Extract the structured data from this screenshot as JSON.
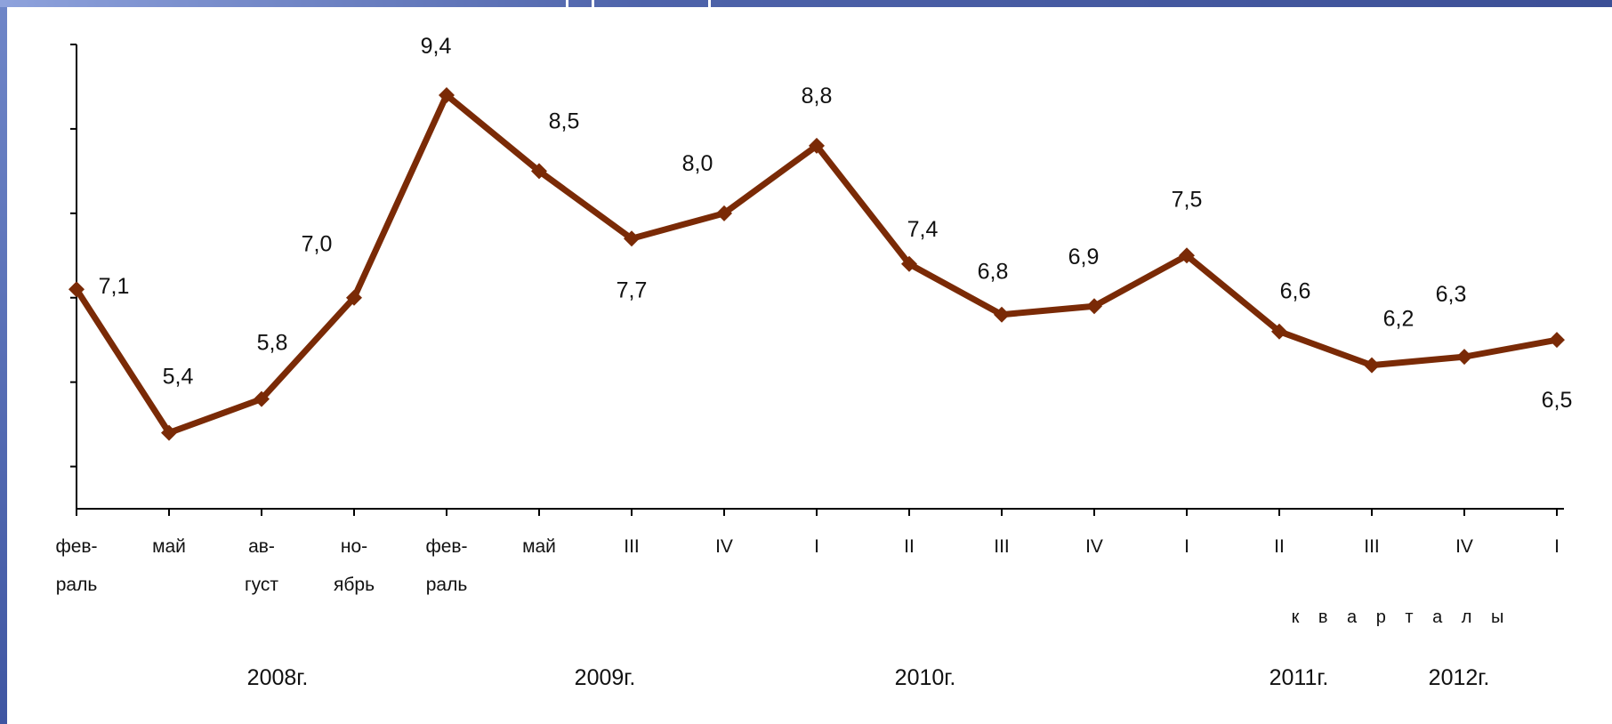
{
  "chart_data": {
    "type": "line",
    "x": [
      {
        "line1": "фев-",
        "line2": "раль"
      },
      {
        "line1": "май",
        "line2": ""
      },
      {
        "line1": "ав-",
        "line2": "густ"
      },
      {
        "line1": "но-",
        "line2": "ябрь"
      },
      {
        "line1": "фев-",
        "line2": "раль"
      },
      {
        "line1": "май",
        "line2": ""
      },
      {
        "line1": "III",
        "line2": ""
      },
      {
        "line1": "IV",
        "line2": ""
      },
      {
        "line1": "I",
        "line2": ""
      },
      {
        "line1": "II",
        "line2": ""
      },
      {
        "line1": "III",
        "line2": ""
      },
      {
        "line1": "IV",
        "line2": ""
      },
      {
        "line1": "I",
        "line2": ""
      },
      {
        "line1": "II",
        "line2": ""
      },
      {
        "line1": "III",
        "line2": ""
      },
      {
        "line1": "IV",
        "line2": ""
      },
      {
        "line1": "I",
        "line2": ""
      }
    ],
    "values": [
      7.1,
      5.4,
      5.8,
      7.0,
      9.4,
      8.5,
      7.7,
      8.0,
      8.8,
      7.4,
      6.8,
      6.9,
      7.5,
      6.6,
      6.2,
      6.3,
      6.5
    ],
    "value_labels": [
      "7,1",
      "5,4",
      "5,8",
      "7,0",
      "9,4",
      "8,5",
      "7,7",
      "8,0",
      "8,8",
      "7,4",
      "6,8",
      "6,9",
      "7,5",
      "6,6",
      "6,2",
      "6,3",
      "6,5"
    ],
    "ylim": [
      4.5,
      10
    ],
    "yticks": [
      5,
      6,
      7,
      8,
      9,
      10
    ],
    "xlabel": "к в а р т а л ы",
    "year_labels": [
      "2008г.",
      "2009г.",
      "2010г.",
      "2011г.",
      "2012г."
    ],
    "line_color": "#7a2a06",
    "grid": false,
    "legend": "none"
  }
}
